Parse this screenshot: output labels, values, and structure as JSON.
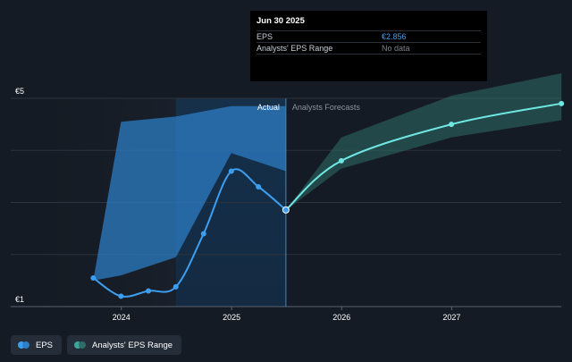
{
  "chart_data": {
    "type": "line",
    "y_axis": {
      "min_label": "€1",
      "max_label": "€5",
      "ylim": [
        1,
        5
      ]
    },
    "x_axis": {
      "ticks": [
        "2024",
        "2025",
        "2026",
        "2027"
      ]
    },
    "sections": {
      "actual": "Actual",
      "forecast": "Analysts Forecasts"
    },
    "series": [
      {
        "name": "EPS",
        "color": "#3d9ef0",
        "x": [
          "2023-09-30",
          "2023-12-31",
          "2024-03-31",
          "2024-06-30",
          "2024-09-30",
          "2024-12-31",
          "2025-03-31",
          "2025-06-30"
        ],
        "values": [
          1.55,
          1.2,
          1.3,
          1.38,
          2.4,
          3.6,
          3.3,
          2.856
        ]
      },
      {
        "name": "EPS",
        "color": "#6ee7e3",
        "x": [
          "2025-06-30",
          "2025-12-31",
          "2026-12-31",
          "2027-12-31"
        ],
        "values": [
          2.856,
          3.8,
          4.5,
          4.9
        ]
      }
    ],
    "ranges": [
      {
        "name": "Analysts' EPS Range",
        "color": "#2d7fc9",
        "x": [
          "2023-09-30",
          "2023-12-31",
          "2024-06-30",
          "2024-12-31",
          "2025-06-30"
        ],
        "low": [
          1.5,
          1.6,
          1.95,
          3.95,
          3.6
        ],
        "high": [
          1.5,
          4.55,
          4.65,
          4.85,
          4.85
        ]
      },
      {
        "name": "Analysts' EPS Range",
        "color": "#2f6e68",
        "x": [
          "2025-06-30",
          "2025-12-31",
          "2026-12-31",
          "2027-12-31"
        ],
        "low": [
          2.85,
          3.65,
          4.25,
          4.58
        ],
        "high": [
          2.85,
          4.25,
          5.05,
          5.48
        ]
      }
    ]
  },
  "tooltip": {
    "date": "Jun 30 2025",
    "rows": [
      {
        "label": "EPS",
        "value": "€2.856"
      },
      {
        "label": "Analysts' EPS Range",
        "value": "No data"
      }
    ]
  },
  "legend": [
    {
      "label": "EPS",
      "colors": [
        "#3d9ef0",
        "#2d7fc9"
      ]
    },
    {
      "label": "Analysts' EPS Range",
      "colors": [
        "#3aa6a0",
        "#2f6e68"
      ]
    }
  ]
}
